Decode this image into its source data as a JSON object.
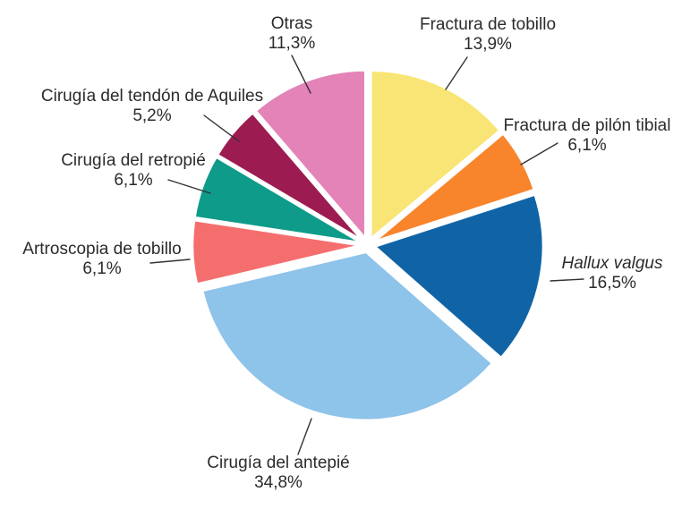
{
  "chart_data": {
    "type": "pie",
    "start_angle": "top",
    "direction": "clockwise",
    "background_color": "#FFFFFF",
    "label_text_color": "#2B2B2B",
    "slice_border_color": "#FFFFFF",
    "legend_position": "outside-labels-with-leader-lines",
    "slices": [
      {
        "label": "Fractura de tobillo",
        "value": 13.9,
        "percent_label": "13,9%",
        "color": "#F9E575",
        "italic": false
      },
      {
        "label": "Fractura de pilón tibial",
        "value": 6.1,
        "percent_label": "6,1%",
        "color": "#F8852C",
        "italic": false
      },
      {
        "label": "Hallux valgus",
        "value": 16.5,
        "percent_label": "16,5%",
        "color": "#1064A6",
        "italic": true
      },
      {
        "label": "Cirugía del antepié",
        "value": 34.8,
        "percent_label": "34,8%",
        "color": "#8EC3EA",
        "italic": false
      },
      {
        "label": "Artroscopia de tobillo",
        "value": 6.1,
        "percent_label": "6,1%",
        "color": "#F56E6E",
        "italic": false
      },
      {
        "label": "Cirugía del retropié",
        "value": 6.1,
        "percent_label": "6,1%",
        "color": "#0E9B8A",
        "italic": false
      },
      {
        "label": "Cirugía del tendón de Aquiles",
        "value": 5.2,
        "percent_label": "5,2%",
        "color": "#9C1C52",
        "italic": false
      },
      {
        "label": "Otras",
        "value": 11.3,
        "percent_label": "11,3%",
        "color": "#E383B8",
        "italic": false
      }
    ]
  }
}
